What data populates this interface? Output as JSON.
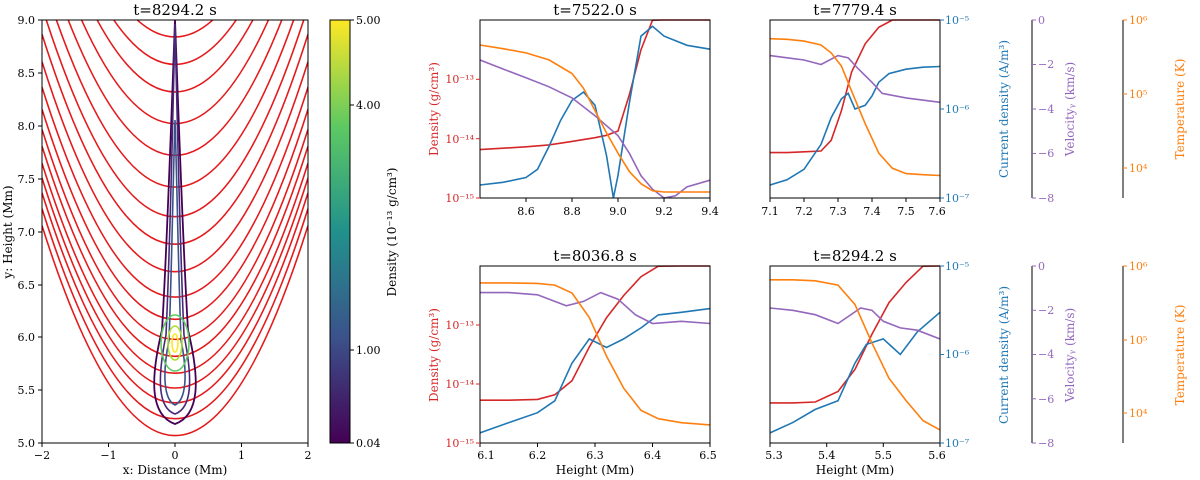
{
  "colors": {
    "density": "#d62728",
    "current": "#1f77b4",
    "velocity": "#9467bd",
    "temperature": "#ff7f0e",
    "fieldlines": "#e41a1c"
  },
  "chart_data": [
    {
      "type": "contour",
      "title": "t=8294.2 s",
      "xlabel": "x: Distance (Mm)",
      "ylabel": "y: Height (Mm)",
      "xlim": [
        -2,
        2
      ],
      "ylim": [
        5.0,
        9.0
      ],
      "xticks": [
        "−2",
        "−1",
        "0",
        "1",
        "2"
      ],
      "yticks": [
        "5.0",
        "5.5",
        "6.0",
        "6.5",
        "7.0",
        "7.5",
        "8.0",
        "8.5",
        "9.0"
      ],
      "colorbar": {
        "label": "Density (10⁻¹³ g/cm³)",
        "ticks": [
          "0.04",
          "1.00",
          "4.00",
          "5.00"
        ],
        "colormap": "viridis"
      },
      "field_line_vertex_heights": [
        5.07,
        5.23,
        5.38,
        5.52,
        5.66,
        5.82,
        5.98,
        6.17,
        6.38,
        6.62,
        6.88,
        7.14,
        7.42,
        7.72,
        8.02,
        8.32,
        8.58,
        8.84
      ]
    },
    {
      "type": "line",
      "title": "t=7522.0 s",
      "xlim": [
        8.5,
        9.5
      ],
      "xticks": [
        "8.6",
        "8.8",
        "9.0",
        "9.2",
        "9.4"
      ],
      "ylabel": "Density (g/cm³)",
      "yticks": [
        "10⁻¹⁵",
        "10⁻¹⁴",
        "10⁻¹³"
      ],
      "y2label": "Current density (A/m³)",
      "y2ticks": [
        "10⁻⁷",
        "10⁻⁶",
        "10⁻⁵"
      ],
      "series": [
        {
          "name": "Density",
          "x": [
            8.5,
            8.6,
            8.7,
            8.8,
            8.9,
            9.0,
            9.05,
            9.1,
            9.15,
            9.2,
            9.25,
            9.3,
            9.35,
            9.4,
            9.5
          ],
          "y": [
            4.5e-15,
            4.7e-15,
            4.9e-15,
            5.2e-15,
            5.8e-15,
            6.5e-15,
            7e-15,
            8e-15,
            2.5e-14,
            1e-13,
            2.5e-13,
            4e-13,
            4.2e-13,
            3.8e-13,
            3e-13
          ]
        },
        {
          "name": "Current density",
          "x": [
            8.5,
            8.6,
            8.7,
            8.75,
            8.8,
            8.85,
            8.9,
            8.95,
            9.0,
            9.05,
            9.08,
            9.1,
            9.15,
            9.2,
            9.25,
            9.3,
            9.4,
            9.5
          ],
          "y": [
            1.4e-07,
            1.5e-07,
            1.7e-07,
            2.1e-07,
            3.8e-07,
            7.4e-07,
            1.25e-06,
            1.55e-06,
            1.1e-06,
            3e-07,
            1e-07,
            1.8e-07,
            1.2e-06,
            6.6e-06,
            8.5e-06,
            6.6e-06,
            5.2e-06,
            4.7e-06
          ]
        },
        {
          "name": "Velocity",
          "x": [
            8.5,
            8.6,
            8.7,
            8.8,
            8.9,
            9.0,
            9.1,
            9.15,
            9.2,
            9.25,
            9.3,
            9.35,
            9.4,
            9.5
          ],
          "y": [
            -1.8,
            -2.2,
            -2.6,
            -3.0,
            -3.5,
            -4.3,
            -5.2,
            -6.0,
            -7.0,
            -7.6,
            -8.0,
            -7.9,
            -7.5,
            -7.2
          ]
        },
        {
          "name": "Temperature",
          "x": [
            8.5,
            8.6,
            8.7,
            8.8,
            8.9,
            8.95,
            9.0,
            9.05,
            9.1,
            9.15,
            9.2,
            9.25,
            9.3,
            9.4,
            9.5
          ],
          "y": [
            460000.0,
            410000.0,
            360000.0,
            290000.0,
            190000.0,
            120000.0,
            60000.0,
            30000.0,
            16000.0,
            9000.0,
            6200.0,
            5000.0,
            4800.0,
            4800.0,
            4800.0
          ]
        }
      ]
    },
    {
      "type": "line",
      "title": "t=7779.4 s",
      "xlim": [
        7.1,
        7.6
      ],
      "xticks": [
        "7.1",
        "7.2",
        "7.3",
        "7.4",
        "7.5",
        "7.6"
      ],
      "y3label": "Velocityᵧ (km/s)",
      "y3ticks": [
        "0",
        "−2",
        "−4",
        "−6",
        "−8"
      ],
      "y4label": "Temperature (K)",
      "y4ticks": [
        "10⁴",
        "10⁵",
        "10⁶"
      ],
      "series": [
        {
          "name": "Density",
          "x": [
            7.1,
            7.15,
            7.2,
            7.25,
            7.28,
            7.31,
            7.34,
            7.38,
            7.42,
            7.46,
            7.5,
            7.55,
            7.6
          ],
          "y": [
            4.1e-15,
            4.1e-15,
            4.2e-15,
            4.3e-15,
            6e-15,
            1.5e-14,
            5e-14,
            1.2e-13,
            2e-13,
            2.6e-13,
            3e-13,
            3.3e-13,
            3.4e-13
          ]
        },
        {
          "name": "Current density",
          "x": [
            7.1,
            7.15,
            7.2,
            7.25,
            7.28,
            7.31,
            7.33,
            7.35,
            7.38,
            7.4,
            7.42,
            7.45,
            7.5,
            7.55,
            7.6
          ],
          "y": [
            1.4e-07,
            1.6e-07,
            2.1e-07,
            4e-07,
            8e-07,
            1.3e-06,
            1.5e-06,
            1e-06,
            1.1e-06,
            1.4e-06,
            2e-06,
            2.5e-06,
            2.8e-06,
            2.95e-06,
            3e-06
          ]
        },
        {
          "name": "Velocity",
          "x": [
            7.1,
            7.15,
            7.2,
            7.25,
            7.3,
            7.33,
            7.36,
            7.4,
            7.43,
            7.5,
            7.6
          ],
          "y": [
            -1.6,
            -1.7,
            -1.8,
            -2.0,
            -1.6,
            -1.7,
            -2.2,
            -2.8,
            -3.3,
            -3.5,
            -3.7
          ]
        },
        {
          "name": "Temperature",
          "x": [
            7.1,
            7.15,
            7.2,
            7.25,
            7.28,
            7.31,
            7.34,
            7.38,
            7.42,
            7.46,
            7.5,
            7.55,
            7.6
          ],
          "y": [
            560000.0,
            550000.0,
            520000.0,
            460000.0,
            360000.0,
            240000.0,
            110000.0,
            40000.0,
            16000.0,
            10000.0,
            8500.0,
            8200.0,
            8000.0
          ]
        }
      ]
    },
    {
      "type": "line",
      "title": "t=8036.8 s",
      "xlabel": "Height (Mm)",
      "xlim": [
        6.1,
        6.5
      ],
      "xticks": [
        "6.1",
        "6.2",
        "6.3",
        "6.4",
        "6.5"
      ],
      "ylabel": "Density (g/cm³)",
      "yticks": [
        "10⁻¹⁵",
        "10⁻¹⁴",
        "10⁻¹³"
      ],
      "y2label": "Current density (A/m³)",
      "y2ticks": [
        "10⁻⁷",
        "10⁻⁶",
        "10⁻⁵"
      ],
      "series": [
        {
          "name": "Density",
          "x": [
            6.1,
            6.15,
            6.2,
            6.23,
            6.26,
            6.29,
            6.32,
            6.35,
            6.38,
            6.41,
            6.45,
            6.5
          ],
          "y": [
            3.8e-15,
            3.8e-15,
            3.9e-15,
            4.5e-15,
            7e-15,
            2e-14,
            5e-14,
            1e-13,
            1.8e-13,
            2.5e-13,
            3e-13,
            3.4e-13
          ]
        },
        {
          "name": "Current density",
          "x": [
            6.1,
            6.15,
            6.2,
            6.23,
            6.26,
            6.29,
            6.32,
            6.35,
            6.38,
            6.41,
            6.45,
            6.5
          ],
          "y": [
            1.3e-07,
            1.7e-07,
            2.2e-07,
            3e-07,
            8e-07,
            1.5e-06,
            1.2e-06,
            1.5e-06,
            2e-06,
            2.8e-06,
            3e-06,
            3.3e-06
          ]
        },
        {
          "name": "Velocity",
          "x": [
            6.1,
            6.15,
            6.2,
            6.25,
            6.28,
            6.31,
            6.34,
            6.37,
            6.4,
            6.45,
            6.5
          ],
          "y": [
            -1.2,
            -1.2,
            -1.3,
            -1.8,
            -1.6,
            -1.2,
            -1.5,
            -2.2,
            -2.6,
            -2.5,
            -2.6
          ]
        },
        {
          "name": "Temperature",
          "x": [
            6.1,
            6.15,
            6.2,
            6.23,
            6.26,
            6.29,
            6.32,
            6.35,
            6.38,
            6.41,
            6.45,
            6.5
          ],
          "y": [
            590000.0,
            590000.0,
            580000.0,
            550000.0,
            430000.0,
            200000.0,
            60000.0,
            22000.0,
            11000.0,
            8500.0,
            7500.0,
            7000.0
          ]
        }
      ]
    },
    {
      "type": "line",
      "title": "t=8294.2 s",
      "xlabel": "Height (Mm)",
      "xlim": [
        5.3,
        5.6
      ],
      "xticks": [
        "5.3",
        "5.4",
        "5.5",
        "5.6"
      ],
      "y3label": "Velocityᵧ (km/s)",
      "y3ticks": [
        "0",
        "−2",
        "−4",
        "−6",
        "−8"
      ],
      "y4label": "Temperature (K)",
      "y4ticks": [
        "10⁴",
        "10⁵",
        "10⁶"
      ],
      "series": [
        {
          "name": "Density",
          "x": [
            5.3,
            5.34,
            5.38,
            5.42,
            5.45,
            5.48,
            5.51,
            5.54,
            5.57,
            5.6
          ],
          "y": [
            3.5e-15,
            3.5e-15,
            3.6e-15,
            5e-15,
            1e-14,
            3e-14,
            8e-14,
            1.5e-13,
            2.5e-13,
            3.4e-13
          ]
        },
        {
          "name": "Current density",
          "x": [
            5.3,
            5.34,
            5.38,
            5.42,
            5.45,
            5.47,
            5.5,
            5.53,
            5.56,
            5.6
          ],
          "y": [
            1.3e-07,
            1.7e-07,
            2.4e-07,
            3e-07,
            8e-07,
            1.3e-06,
            1.5e-06,
            1e-06,
            1.8e-06,
            3e-06
          ]
        },
        {
          "name": "Velocity",
          "x": [
            5.3,
            5.34,
            5.38,
            5.42,
            5.46,
            5.48,
            5.5,
            5.53,
            5.56,
            5.6
          ],
          "y": [
            -1.9,
            -2.0,
            -2.2,
            -2.6,
            -1.9,
            -2.0,
            -2.5,
            -2.8,
            -2.9,
            -3.3
          ]
        },
        {
          "name": "Temperature",
          "x": [
            5.3,
            5.34,
            5.38,
            5.42,
            5.45,
            5.48,
            5.51,
            5.54,
            5.57,
            5.6
          ],
          "y": [
            650000.0,
            650000.0,
            630000.0,
            550000.0,
            300000.0,
            90000.0,
            30000.0,
            15000.0,
            8000.0,
            6000.0
          ]
        }
      ]
    }
  ]
}
